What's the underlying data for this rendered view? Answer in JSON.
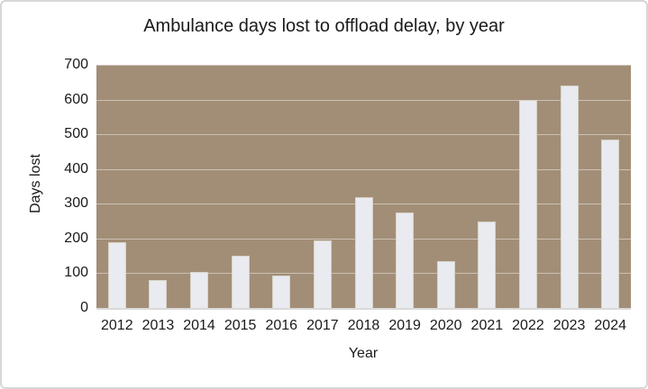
{
  "chart_data": {
    "type": "bar",
    "title": "Ambulance days lost to offload delay, by year",
    "xlabel": "Year",
    "ylabel": "Days lost",
    "categories": [
      "2012",
      "2013",
      "2014",
      "2015",
      "2016",
      "2017",
      "2018",
      "2019",
      "2020",
      "2021",
      "2022",
      "2023",
      "2024"
    ],
    "values": [
      190,
      80,
      105,
      150,
      93,
      195,
      320,
      275,
      135,
      250,
      600,
      640,
      485
    ],
    "ylim": [
      0,
      700
    ],
    "yticks": [
      0,
      100,
      200,
      300,
      400,
      500,
      600,
      700
    ],
    "grid": "horizontal",
    "legend": "none"
  },
  "colors": {
    "chart_bg": "#ffffff",
    "frame_border": "#d7d7d7",
    "plot_bg": "#a28e77",
    "gridline": "rgba(255,255,255,0.45)",
    "axis_line": "#d9d9d9",
    "bar_fill": "#e9ebf0",
    "bar_border": "#d9d3c7",
    "text": "#1a1a1a"
  }
}
